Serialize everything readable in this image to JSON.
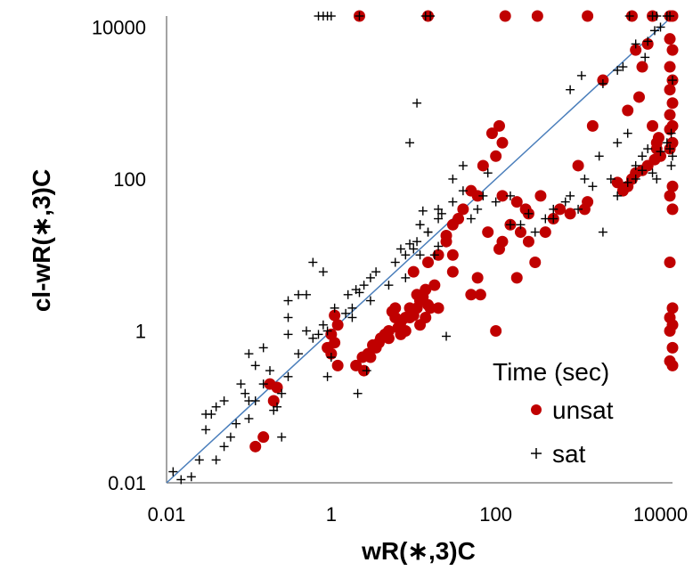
{
  "chart_data": {
    "type": "scatter",
    "title": "",
    "xlabel": "wR(∗,3)C",
    "ylabel": "cl-wR(∗,3)C",
    "x_scale": "log",
    "y_scale": "log",
    "xlim": [
      0.01,
      14000
    ],
    "ylim": [
      0.01,
      14000
    ],
    "x_ticks": [
      "0.01",
      "1",
      "100",
      "10000"
    ],
    "y_ticks": [
      "0.01",
      "1",
      "100",
      "10000"
    ],
    "grid": false,
    "legend_title": "Time (sec)",
    "legend_position": "bottom-right",
    "reference_line": {
      "label": "",
      "from": [
        0.01,
        0.01
      ],
      "to": [
        14000,
        14000
      ],
      "color": "#4a7ebb"
    },
    "colors": {
      "unsat": "#c00000",
      "sat": "#000000"
    },
    "series": [
      {
        "name": "unsat",
        "marker": "circle",
        "points": [
          [
            2.2,
            14000
          ],
          [
            15,
            14000
          ],
          [
            130,
            14000
          ],
          [
            320,
            14000
          ],
          [
            1300,
            14000
          ],
          [
            4500,
            14000
          ],
          [
            8000,
            14000
          ],
          [
            14000,
            14000
          ],
          [
            13000,
            14000
          ],
          [
            13000,
            7000
          ],
          [
            14000,
            5000
          ],
          [
            13000,
            3000
          ],
          [
            14000,
            2000
          ],
          [
            13000,
            1500
          ],
          [
            14000,
            1000
          ],
          [
            13000,
            700
          ],
          [
            14000,
            500
          ],
          [
            13000,
            450
          ],
          [
            14000,
            300
          ],
          [
            13000,
            250
          ],
          [
            14000,
            80
          ],
          [
            13000,
            60
          ],
          [
            14000,
            40
          ],
          [
            13000,
            8
          ],
          [
            14000,
            2
          ],
          [
            13000,
            1.5
          ],
          [
            14000,
            1.2
          ],
          [
            13000,
            1
          ],
          [
            14000,
            0.6
          ],
          [
            13000,
            0.4
          ],
          [
            14000,
            0.35
          ],
          [
            7000,
            6000
          ],
          [
            5000,
            5000
          ],
          [
            6000,
            3000
          ],
          [
            2000,
            2000
          ],
          [
            5500,
            1200
          ],
          [
            4000,
            800
          ],
          [
            1500,
            500
          ],
          [
            1000,
            150
          ],
          [
            8000,
            500
          ],
          [
            9000,
            300
          ],
          [
            9000,
            250
          ],
          [
            10000,
            200
          ],
          [
            9500,
            350
          ],
          [
            8500,
            180
          ],
          [
            7000,
            150
          ],
          [
            6000,
            130
          ],
          [
            5000,
            120
          ],
          [
            4500,
            100
          ],
          [
            3000,
            90
          ],
          [
            4000,
            80
          ],
          [
            3500,
            70
          ],
          [
            1300,
            50
          ],
          [
            600,
            40
          ],
          [
            250,
            35
          ],
          [
            800,
            35
          ],
          [
            1200,
            40
          ],
          [
            500,
            30
          ],
          [
            400,
            20
          ],
          [
            350,
            60
          ],
          [
            230,
            40
          ],
          [
            180,
            50
          ],
          [
            150,
            25
          ],
          [
            100,
            200
          ],
          [
            110,
            500
          ],
          [
            120,
            300
          ],
          [
            90,
            400
          ],
          [
            70,
            150
          ],
          [
            60,
            60
          ],
          [
            50,
            70
          ],
          [
            40,
            40
          ],
          [
            35,
            30
          ],
          [
            30,
            25
          ],
          [
            25,
            18
          ],
          [
            20,
            10
          ],
          [
            25,
            15
          ],
          [
            30,
            10
          ],
          [
            80,
            20
          ],
          [
            120,
            60
          ],
          [
            120,
            15
          ],
          [
            110,
            12
          ],
          [
            60,
            5
          ],
          [
            65,
            3
          ],
          [
            100,
            1
          ],
          [
            180,
            5
          ],
          [
            200,
            20
          ],
          [
            300,
            8
          ],
          [
            250,
            15
          ],
          [
            50,
            3
          ],
          [
            30,
            6
          ],
          [
            20,
            2
          ],
          [
            12,
            1.2
          ],
          [
            10,
            6
          ],
          [
            15,
            8
          ],
          [
            18,
            4
          ],
          [
            16,
            2
          ],
          [
            14,
            1.5
          ],
          [
            12,
            2.5
          ],
          [
            11,
            3
          ],
          [
            9,
            2
          ],
          [
            8,
            1.5
          ],
          [
            7,
            1.3
          ],
          [
            6,
            1.5
          ],
          [
            5,
            1
          ],
          [
            4,
            0.8
          ],
          [
            3.5,
            0.6
          ],
          [
            3,
            0.45
          ],
          [
            2.5,
            0.3
          ],
          [
            2,
            0.35
          ],
          [
            2.4,
            0.45
          ],
          [
            2.8,
            0.5
          ],
          [
            3.2,
            0.65
          ],
          [
            3.8,
            0.7
          ],
          [
            4.5,
            0.9
          ],
          [
            5.5,
            1.8
          ],
          [
            6,
            2
          ],
          [
            9,
            1.5
          ],
          [
            10,
            1.6
          ],
          [
            11,
            2
          ],
          [
            12,
            2.5
          ],
          [
            13,
            2.8
          ],
          [
            14,
            3.5
          ],
          [
            15,
            2.2
          ],
          [
            8,
            1
          ],
          [
            7,
            0.9
          ],
          [
            6.5,
            1.1
          ],
          [
            5,
            0.8
          ],
          [
            1.1,
            1.6
          ],
          [
            1.2,
            1.2
          ],
          [
            1,
            0.9
          ],
          [
            0.9,
            0.6
          ],
          [
            1,
            0.5
          ],
          [
            1.2,
            0.35
          ],
          [
            1.1,
            0.7
          ],
          [
            0.18,
            0.2
          ],
          [
            0.2,
            0.12
          ],
          [
            0.15,
            0.04
          ],
          [
            0.12,
            0.03
          ],
          [
            0.22,
            0.18
          ]
        ]
      },
      {
        "name": "sat",
        "marker": "plus",
        "points": [
          [
            0.7,
            14000
          ],
          [
            0.8,
            14000
          ],
          [
            0.9,
            14000
          ],
          [
            1,
            14000
          ],
          [
            14,
            14000
          ],
          [
            16,
            14000
          ],
          [
            4200,
            14000
          ],
          [
            8000,
            14000
          ],
          [
            9000,
            14000
          ],
          [
            12000,
            14000
          ],
          [
            13000,
            14000
          ],
          [
            5000,
            6000
          ],
          [
            3500,
            3000
          ],
          [
            3000,
            2700
          ],
          [
            2000,
            1800
          ],
          [
            1100,
            2300
          ],
          [
            800,
            1500
          ],
          [
            6500,
            4000
          ],
          [
            7000,
            6500
          ],
          [
            8500,
            9000
          ],
          [
            10000,
            10000
          ],
          [
            14000,
            2000
          ],
          [
            13500,
            400
          ],
          [
            14000,
            200
          ],
          [
            9000,
            100
          ],
          [
            6000,
            130
          ],
          [
            5000,
            100
          ],
          [
            4000,
            90
          ],
          [
            3000,
            60
          ],
          [
            1000,
            40
          ],
          [
            500,
            30
          ],
          [
            300,
            20
          ],
          [
            200,
            25
          ],
          [
            150,
            60
          ],
          [
            100,
            50
          ],
          [
            60,
            40
          ],
          [
            40,
            70
          ],
          [
            30,
            50
          ],
          [
            20,
            30
          ],
          [
            15,
            20
          ],
          [
            12,
            10
          ],
          [
            8,
            5
          ],
          [
            18,
            10
          ],
          [
            20,
            40
          ],
          [
            22,
            35
          ],
          [
            13,
            38
          ],
          [
            12,
            25
          ],
          [
            11,
            1000
          ],
          [
            9,
            300
          ],
          [
            0.6,
            8
          ],
          [
            0.3,
            0.9
          ],
          [
            0.25,
            0.04
          ],
          [
            2.2,
            14000
          ],
          [
            0.8,
            6
          ],
          [
            2,
            3.5
          ],
          [
            2.2,
            3.2
          ],
          [
            2.5,
            4
          ],
          [
            3,
            5
          ],
          [
            3.5,
            6
          ],
          [
            5,
            4
          ],
          [
            6,
            8
          ],
          [
            7,
            12
          ],
          [
            8,
            10
          ],
          [
            9,
            14
          ],
          [
            10,
            12
          ],
          [
            11,
            15
          ],
          [
            12,
            25
          ],
          [
            15,
            20
          ],
          [
            20,
            13
          ],
          [
            30,
            100
          ],
          [
            40,
            150
          ],
          [
            50,
            30
          ],
          [
            70,
            60
          ],
          [
            80,
            120
          ],
          [
            150,
            25
          ],
          [
            250,
            35
          ],
          [
            400,
            30
          ],
          [
            500,
            40
          ],
          [
            700,
            50
          ],
          [
            800,
            60
          ],
          [
            1200,
            100
          ],
          [
            1500,
            80
          ],
          [
            1800,
            200
          ],
          [
            2000,
            20
          ],
          [
            2500,
            100
          ],
          [
            3000,
            300
          ],
          [
            4000,
            400
          ],
          [
            5000,
            150
          ],
          [
            6000,
            200
          ],
          [
            7000,
            250
          ],
          [
            8000,
            120
          ],
          [
            10000,
            230
          ],
          [
            12000,
            300
          ],
          [
            13000,
            250
          ],
          [
            13500,
            150
          ],
          [
            1.1,
            2
          ],
          [
            0.9,
            1
          ],
          [
            0.8,
            1.2
          ],
          [
            0.7,
            0.9
          ],
          [
            0.6,
            0.8
          ],
          [
            0.5,
            1
          ],
          [
            0.4,
            0.5
          ],
          [
            0.3,
            0.25
          ],
          [
            0.25,
            0.15
          ],
          [
            0.22,
            0.1
          ],
          [
            0.2,
            0.09
          ],
          [
            0.18,
            0.3
          ],
          [
            0.15,
            0.2
          ],
          [
            0.12,
            0.12
          ],
          [
            0.1,
            0.07
          ],
          [
            0.09,
            0.15
          ],
          [
            0.08,
            0.2
          ],
          [
            0.07,
            0.06
          ],
          [
            0.06,
            0.04
          ],
          [
            0.05,
            0.03
          ],
          [
            0.04,
            0.02
          ],
          [
            0.03,
            0.05
          ],
          [
            0.025,
            0.02
          ],
          [
            0.02,
            0.012
          ],
          [
            0.015,
            0.011
          ],
          [
            0.012,
            0.014
          ],
          [
            0.3,
            2.5
          ],
          [
            0.4,
            3
          ],
          [
            0.5,
            3
          ],
          [
            0.3,
            1.5
          ],
          [
            0.12,
            0.35
          ],
          [
            0.1,
            0.12
          ],
          [
            0.05,
            0.12
          ],
          [
            0.04,
            0.1
          ],
          [
            0.035,
            0.08
          ],
          [
            0.03,
            0.08
          ],
          [
            0.1,
            0.5
          ],
          [
            0.15,
            0.6
          ],
          [
            1.6,
            3
          ],
          [
            1.8,
            1.5
          ],
          [
            2.7,
            0.3
          ],
          [
            2.1,
            0.15
          ],
          [
            0.9,
            0.25
          ],
          [
            1,
            0.45
          ],
          [
            25,
            0.85
          ],
          [
            1.8,
            2
          ],
          [
            1.5,
            1.7
          ],
          [
            3,
            2.5
          ]
        ]
      }
    ]
  }
}
